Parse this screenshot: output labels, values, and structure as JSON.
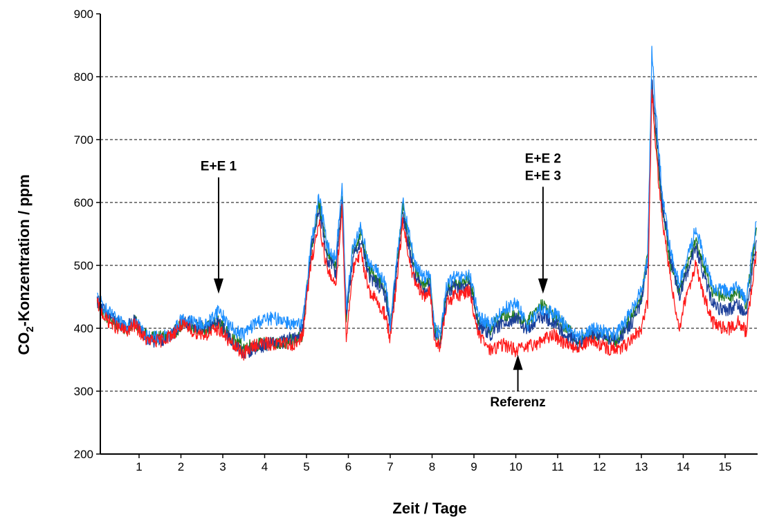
{
  "chart_data": {
    "type": "line",
    "title": "",
    "xlabel": "Zeit / Tage",
    "ylabel": "CO₂-Konzentration / ppm",
    "ylabel_parts": {
      "pre": "CO",
      "sub": "2",
      "post": "-Konzentration / ppm"
    },
    "xlim": [
      0,
      15.75
    ],
    "ylim": [
      200,
      900
    ],
    "xticks": [
      1,
      2,
      3,
      4,
      5,
      6,
      7,
      8,
      9,
      10,
      11,
      12,
      13,
      14,
      15
    ],
    "yticks": [
      200,
      300,
      400,
      500,
      600,
      700,
      800,
      900
    ],
    "grid": "horizontal-dashed",
    "series": [
      {
        "color": "#1f7a1f",
        "x": [
          0,
          0.2,
          0.5,
          0.7,
          0.9,
          1.2,
          1.5,
          1.8,
          2.0,
          2.3,
          2.6,
          2.9,
          3.2,
          3.5,
          3.8,
          4.1,
          4.4,
          4.7,
          4.9,
          5.1,
          5.3,
          5.5,
          5.7,
          5.85,
          5.95,
          6.1,
          6.3,
          6.5,
          6.7,
          6.9,
          7.0,
          7.15,
          7.3,
          7.45,
          7.6,
          7.8,
          7.95,
          8.05,
          8.2,
          8.35,
          8.5,
          8.7,
          8.9,
          9.1,
          9.4,
          9.7,
          10.0,
          10.3,
          10.6,
          10.9,
          11.2,
          11.5,
          11.8,
          12.1,
          12.4,
          12.7,
          13.0,
          13.15,
          13.25,
          13.35,
          13.5,
          13.7,
          13.9,
          14.1,
          14.3,
          14.5,
          14.7,
          14.9,
          15.1,
          15.3,
          15.5,
          15.75
        ],
        "y": [
          440,
          420,
          405,
          400,
          410,
          385,
          385,
          390,
          405,
          400,
          400,
          410,
          385,
          370,
          375,
          375,
          375,
          380,
          390,
          520,
          600,
          520,
          500,
          600,
          420,
          520,
          550,
          490,
          480,
          460,
          400,
          500,
          590,
          540,
          490,
          470,
          480,
          400,
          380,
          460,
          470,
          470,
          480,
          410,
          400,
          420,
          420,
          410,
          440,
          420,
          400,
          380,
          390,
          390,
          380,
          410,
          450,
          520,
          780,
          700,
          590,
          500,
          460,
          500,
          540,
          500,
          460,
          450,
          450,
          460,
          440,
          560
        ]
      },
      {
        "color": "#1c3f99",
        "x": [
          0,
          0.2,
          0.5,
          0.7,
          0.9,
          1.2,
          1.5,
          1.8,
          2.0,
          2.3,
          2.6,
          2.9,
          3.2,
          3.5,
          3.8,
          4.1,
          4.4,
          4.7,
          4.9,
          5.1,
          5.3,
          5.5,
          5.7,
          5.85,
          5.95,
          6.1,
          6.3,
          6.5,
          6.7,
          6.9,
          7.0,
          7.15,
          7.3,
          7.45,
          7.6,
          7.8,
          7.95,
          8.05,
          8.2,
          8.35,
          8.5,
          8.7,
          8.9,
          9.1,
          9.4,
          9.7,
          10.0,
          10.3,
          10.6,
          10.9,
          11.2,
          11.5,
          11.8,
          12.1,
          12.4,
          12.7,
          13.0,
          13.15,
          13.25,
          13.35,
          13.5,
          13.7,
          13.9,
          14.1,
          14.3,
          14.5,
          14.7,
          14.9,
          15.1,
          15.3,
          15.5,
          15.75
        ],
        "y": [
          445,
          425,
          408,
          402,
          412,
          380,
          380,
          388,
          410,
          405,
          400,
          410,
          380,
          360,
          370,
          375,
          378,
          385,
          395,
          520,
          590,
          510,
          490,
          610,
          420,
          510,
          540,
          480,
          470,
          450,
          395,
          490,
          580,
          530,
          480,
          460,
          470,
          395,
          375,
          455,
          465,
          465,
          470,
          405,
          390,
          410,
          415,
          395,
          420,
          410,
          390,
          375,
          390,
          385,
          380,
          400,
          440,
          500,
          800,
          720,
          600,
          510,
          450,
          490,
          530,
          480,
          440,
          430,
          430,
          440,
          420,
          540
        ]
      },
      {
        "color": "#1e90ff",
        "x": [
          0,
          0.2,
          0.5,
          0.7,
          0.9,
          1.2,
          1.5,
          1.8,
          2.0,
          2.3,
          2.6,
          2.9,
          3.2,
          3.5,
          3.8,
          4.1,
          4.4,
          4.7,
          4.9,
          5.1,
          5.3,
          5.5,
          5.7,
          5.85,
          5.95,
          6.1,
          6.3,
          6.5,
          6.7,
          6.9,
          7.0,
          7.15,
          7.3,
          7.45,
          7.6,
          7.8,
          7.95,
          8.05,
          8.2,
          8.35,
          8.5,
          8.7,
          8.9,
          9.1,
          9.4,
          9.7,
          10.0,
          10.3,
          10.6,
          10.9,
          11.2,
          11.5,
          11.8,
          12.1,
          12.4,
          12.7,
          13.0,
          13.15,
          13.25,
          13.35,
          13.5,
          13.7,
          13.9,
          14.1,
          14.3,
          14.5,
          14.7,
          14.9,
          15.1,
          15.3,
          15.5,
          15.75
        ],
        "y": [
          450,
          430,
          410,
          405,
          415,
          385,
          385,
          390,
          415,
          410,
          405,
          430,
          400,
          390,
          410,
          415,
          415,
          405,
          405,
          530,
          610,
          530,
          510,
          630,
          430,
          530,
          560,
          500,
          490,
          470,
          400,
          510,
          600,
          550,
          500,
          480,
          490,
          400,
          390,
          470,
          480,
          480,
          485,
          420,
          405,
          430,
          440,
          405,
          430,
          425,
          405,
          385,
          400,
          395,
          390,
          420,
          460,
          510,
          840,
          740,
          610,
          520,
          470,
          510,
          560,
          510,
          465,
          460,
          460,
          465,
          445,
          570
        ]
      },
      {
        "color": "#ff1a1a",
        "x": [
          0,
          0.2,
          0.5,
          0.7,
          0.9,
          1.2,
          1.5,
          1.8,
          2.0,
          2.3,
          2.6,
          2.9,
          3.2,
          3.5,
          3.8,
          4.1,
          4.4,
          4.7,
          4.9,
          5.1,
          5.3,
          5.5,
          5.7,
          5.85,
          5.95,
          6.1,
          6.3,
          6.5,
          6.7,
          6.9,
          7.0,
          7.15,
          7.3,
          7.45,
          7.6,
          7.8,
          7.95,
          8.05,
          8.2,
          8.35,
          8.5,
          8.7,
          8.9,
          9.1,
          9.4,
          9.7,
          10.0,
          10.3,
          10.6,
          10.9,
          11.2,
          11.5,
          11.8,
          12.1,
          12.4,
          12.7,
          13.0,
          13.15,
          13.25,
          13.35,
          13.5,
          13.7,
          13.9,
          14.1,
          14.3,
          14.5,
          14.7,
          14.9,
          15.1,
          15.3,
          15.5,
          15.75
        ],
        "y": [
          440,
          415,
          400,
          395,
          405,
          380,
          380,
          390,
          405,
          395,
          390,
          400,
          375,
          360,
          375,
          375,
          375,
          375,
          385,
          500,
          570,
          490,
          470,
          590,
          385,
          490,
          520,
          460,
          440,
          420,
          380,
          470,
          570,
          510,
          470,
          450,
          460,
          385,
          370,
          440,
          450,
          455,
          460,
          390,
          365,
          375,
          365,
          370,
          380,
          390,
          375,
          370,
          380,
          370,
          365,
          375,
          400,
          440,
          780,
          680,
          570,
          480,
          400,
          460,
          500,
          450,
          410,
          400,
          400,
          410,
          395,
          520
        ]
      }
    ],
    "annotations": [
      {
        "lines": [
          "E+E 1"
        ],
        "direction": "down",
        "x": 2.9,
        "y_from": 640,
        "y_to": 455
      },
      {
        "lines": [
          "E+E 2",
          "E+E 3"
        ],
        "direction": "down",
        "x": 10.65,
        "y_from": 625,
        "y_to": 455
      },
      {
        "lines": [
          "Referenz"
        ],
        "direction": "up",
        "x": 10.05,
        "y_from": 300,
        "y_to": 358
      }
    ]
  }
}
